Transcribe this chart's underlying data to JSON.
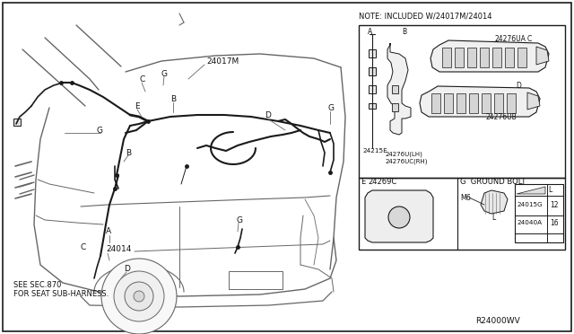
{
  "bg_color": "#ffffff",
  "line_color": "#1a1a1a",
  "light_line": "#666666",
  "text_color": "#111111",
  "harness_color": "#111111",
  "vehicle_fill": "#ffffff",
  "note_text": "NOTE: INCLUDED W/24017M/24014",
  "bottom_note": "SEE SEC.870\nFOR SEAT SUB-HARNESS.",
  "watermark": "R24000WV",
  "inset_note": "NOTE: INCLUDED W/24017M/24014",
  "ground_bolt_title": "G  GROUND BOLT",
  "m6": "M6",
  "part_e": "E   24269C",
  "table_rows": [
    [
      "24015G",
      "12"
    ],
    [
      "24040A",
      "16"
    ]
  ],
  "table_L": "L",
  "part_24017M": "24017M",
  "part_24014": "24014",
  "part_24276UA": "24276UA",
  "part_24276UB": "24276UB",
  "part_24276U_LH": "24276U(LH)",
  "part_24276UC_RH": "24276UC(RH)",
  "part_24215E": "24215E"
}
